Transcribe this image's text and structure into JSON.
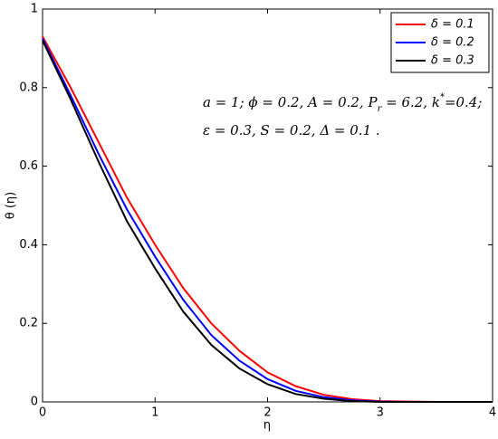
{
  "chart_data": {
    "type": "line",
    "x_label": "η",
    "y_label": "θ (η)",
    "x": [
      0,
      0.25,
      0.5,
      0.75,
      1,
      1.25,
      1.5,
      1.75,
      2,
      2.25,
      2.5,
      2.75,
      3,
      3.25,
      3.5,
      3.75,
      4
    ],
    "series": [
      {
        "name": "δ = 0.1",
        "color": "#ff0000",
        "values": [
          0.93,
          0.8,
          0.66,
          0.52,
          0.4,
          0.29,
          0.2,
          0.13,
          0.075,
          0.04,
          0.018,
          0.007,
          0.002,
          0.001,
          0,
          0,
          0
        ]
      },
      {
        "name": "δ = 0.2",
        "color": "#0000ff",
        "values": [
          0.925,
          0.78,
          0.63,
          0.49,
          0.37,
          0.26,
          0.17,
          0.105,
          0.058,
          0.028,
          0.012,
          0.004,
          0.001,
          0,
          0,
          0,
          0
        ]
      },
      {
        "name": "δ = 0.3",
        "color": "#000000",
        "values": [
          0.92,
          0.77,
          0.61,
          0.46,
          0.34,
          0.23,
          0.145,
          0.085,
          0.045,
          0.02,
          0.008,
          0.002,
          0,
          0,
          0,
          0,
          0
        ]
      }
    ],
    "xlim": [
      0,
      4
    ],
    "xticks": [
      0,
      1,
      2,
      3,
      4
    ],
    "ylim": [
      0,
      1
    ],
    "yticks": [
      0,
      0.2,
      0.4,
      0.6,
      0.8,
      1
    ],
    "grid": false,
    "legend": "upper right",
    "annotation": [
      [
        {
          "text": "a = 1; ϕ = 0.2, A = 0.2, P"
        },
        {
          "text": "r",
          "script": "sub"
        },
        {
          "text": " = 6.2, k"
        },
        {
          "text": "*",
          "script": "sup"
        },
        {
          "text": "=0.4;"
        }
      ],
      [
        {
          "text": "ε = 0.3, S = 0.2, Δ = 0.1 ."
        }
      ]
    ]
  }
}
